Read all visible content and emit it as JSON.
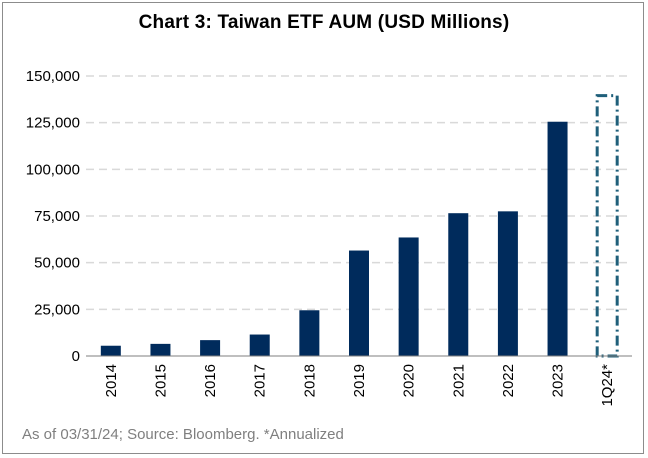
{
  "chart_data": {
    "type": "bar",
    "title": "Chart 3: Taiwan ETF AUM (USD Millions)",
    "categories": [
      "2014",
      "2015",
      "2016",
      "2017",
      "2018",
      "2019",
      "2020",
      "2021",
      "2022",
      "2023",
      "1Q24*"
    ],
    "values": [
      5500,
      6500,
      8500,
      11500,
      24500,
      56500,
      63500,
      76500,
      77500,
      125500,
      null
    ],
    "annualized": {
      "category": "1Q24*",
      "value": 139500,
      "style": "dash-dot outline"
    },
    "ylim": [
      0,
      150000
    ],
    "yticks": [
      0,
      25000,
      50000,
      75000,
      100000,
      125000,
      150000
    ],
    "ytick_labels": [
      "0",
      "25,000",
      "50,000",
      "75,000",
      "100,000",
      "125,000",
      "150,000"
    ],
    "grid": true,
    "legend": "none",
    "colors": {
      "bar": "#002b5c",
      "annualized_outline": "#1f5f7a",
      "grid": "#d9d9d9",
      "axis": "#7f7f7f"
    }
  },
  "footnote": "As of 03/31/24; Source: Bloomberg. *Annualized"
}
